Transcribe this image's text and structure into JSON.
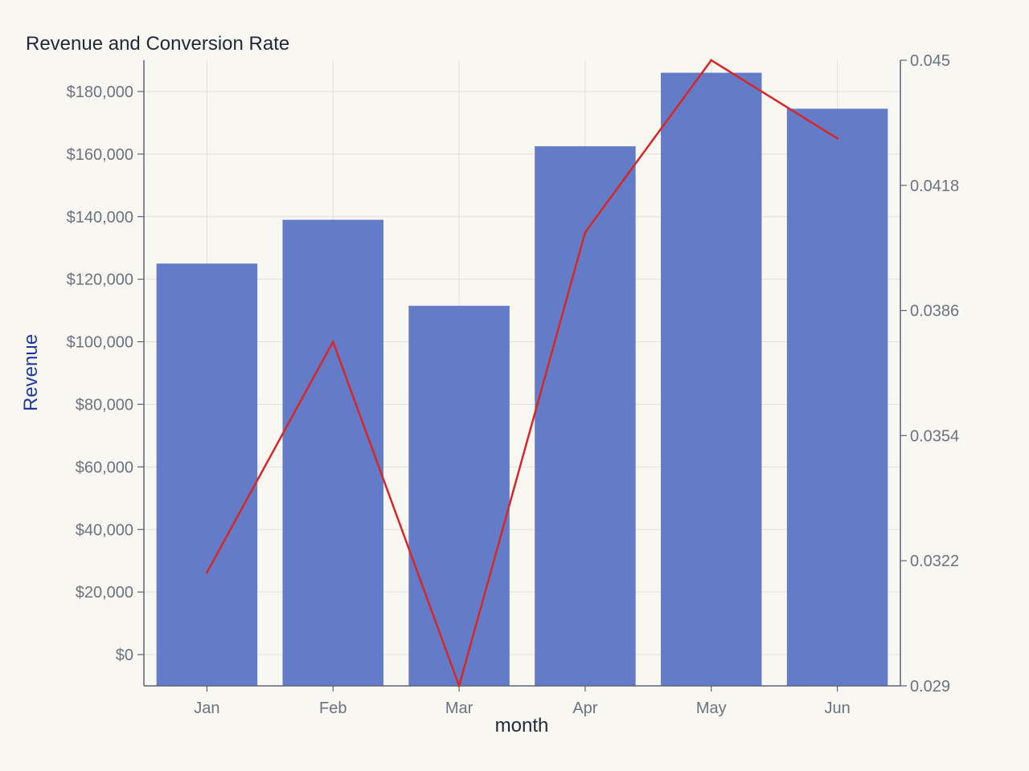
{
  "chart_data": {
    "type": "bar",
    "title": "Revenue and Conversion Rate",
    "xlabel": "month",
    "ylabel": "Revenue",
    "y2label": "",
    "categories": [
      "Jan",
      "Feb",
      "Mar",
      "Apr",
      "May",
      "Jun"
    ],
    "series": [
      {
        "type": "bar",
        "axis": "left",
        "values": [
          125000,
          139000,
          111500,
          162500,
          186000,
          174500
        ],
        "color": "#4f6bc1"
      },
      {
        "type": "line",
        "axis": "right",
        "values": [
          0.0319,
          0.0378,
          0.029,
          0.0406,
          0.045,
          0.043
        ],
        "color": "#d62728"
      }
    ],
    "ylim": [
      -10000,
      190000
    ],
    "y2lim": [
      0.029,
      0.045
    ],
    "yticks": [
      0,
      20000,
      40000,
      60000,
      80000,
      100000,
      120000,
      140000,
      160000,
      180000
    ],
    "ytick_labels": [
      "$0",
      "$20,000",
      "$40,000",
      "$60,000",
      "$80,000",
      "$100,000",
      "$120,000",
      "$140,000",
      "$160,000",
      "$180,000"
    ],
    "y2ticks": [
      0.029,
      0.0322,
      0.0354,
      0.0386,
      0.0418,
      0.045
    ],
    "y2tick_labels": [
      "0.029",
      "0.0322",
      "0.0354",
      "0.0386",
      "0.0418",
      "0.045"
    ],
    "grid": true,
    "colors": {
      "background": "#f9f7f2",
      "grid": "#e2e0db",
      "axis": "#5b6478",
      "ylabel": "#1e3a9f"
    }
  }
}
